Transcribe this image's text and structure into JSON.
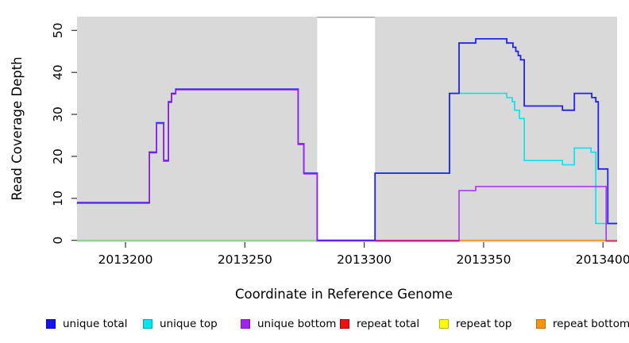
{
  "chart": {
    "type": "step-line",
    "xlabel": "Coordinate in Reference Genome",
    "ylabel": "Read Coverage Depth",
    "xlim": [
      2013179.7,
      2013405.9
    ],
    "ylim": [
      0,
      53.3
    ],
    "xticks": [
      2013200,
      2013250,
      2013300,
      2013350,
      2013400
    ],
    "yticks": [
      0,
      10,
      20,
      30,
      40,
      50
    ],
    "panel_bg": "#d9d9d9",
    "gap_region": [
      2013280.3,
      2013304.5
    ],
    "regions": [
      [
        2013179.7,
        2013280.3
      ],
      [
        2013304.5,
        2013405.9
      ]
    ],
    "series": [
      {
        "name": "zero-line-left-green",
        "legend_label": null,
        "color": "#7fc97f",
        "width": 1.4,
        "dy": 0,
        "steps": [
          [
            2013179.7,
            0
          ]
        ],
        "x_end": 2013280.3
      },
      {
        "name": "repeat-total",
        "legend_label": "repeat total",
        "color": "#ee2222",
        "width": 1.4,
        "dy": 0,
        "steps": [
          [
            2013304.5,
            0
          ]
        ],
        "x_end": 2013340
      },
      {
        "name": "repeat-top",
        "legend_label": "repeat top",
        "color": "#ffff00",
        "width": 1.4,
        "dy": 0,
        "steps": [],
        "x_end": null
      },
      {
        "name": "repeat-bottom",
        "legend_label": "repeat bottom",
        "color": "#ff9300",
        "width": 1.6,
        "dy": 0,
        "steps": [
          [
            2013340,
            0
          ]
        ],
        "x_end": 2013405.9
      },
      {
        "name": "unique-top",
        "legend_label": "unique top",
        "color": "#00e5ee",
        "width": 1.6,
        "dy": 0,
        "steps": [
          [
            2013304.5,
            16
          ],
          [
            2013335.7,
            35
          ],
          [
            2013359.7,
            34
          ],
          [
            2013362,
            33
          ],
          [
            2013363,
            31
          ],
          [
            2013365,
            29
          ],
          [
            2013367,
            19
          ],
          [
            2013383,
            18
          ],
          [
            2013388,
            22
          ],
          [
            2013395,
            21
          ],
          [
            2013397,
            4
          ]
        ],
        "x_end": 2013405.9
      },
      {
        "name": "unique-total",
        "legend_label": "unique total",
        "color": "#2222ee",
        "width": 1.8,
        "dy": 0,
        "steps": [
          [
            2013179.7,
            9
          ],
          [
            2013210,
            21
          ],
          [
            2013213,
            28
          ],
          [
            2013216,
            19
          ],
          [
            2013218,
            33
          ],
          [
            2013219.3,
            35
          ],
          [
            2013221,
            36
          ],
          [
            2013272.3,
            23
          ],
          [
            2013274.7,
            16
          ],
          [
            2013280.3,
            0
          ],
          [
            2013304.5,
            16
          ],
          [
            2013335.7,
            35
          ],
          [
            2013339.7,
            47
          ],
          [
            2013346.7,
            48
          ],
          [
            2013359.7,
            47
          ],
          [
            2013362.3,
            46
          ],
          [
            2013363.5,
            45
          ],
          [
            2013364.5,
            44
          ],
          [
            2013365.5,
            43
          ],
          [
            2013367,
            32
          ],
          [
            2013383,
            31
          ],
          [
            2013388,
            35
          ],
          [
            2013395.3,
            34
          ],
          [
            2013397,
            33
          ],
          [
            2013398,
            17
          ],
          [
            2013402,
            4
          ]
        ],
        "x_end": 2013405.9
      },
      {
        "name": "unique-bottom",
        "legend_label": "unique bottom",
        "color": "#a020f0",
        "width": 1.4,
        "dy": 0.9,
        "steps": [
          [
            2013179.7,
            9
          ],
          [
            2013210,
            21
          ],
          [
            2013213,
            28
          ],
          [
            2013216,
            19
          ],
          [
            2013218,
            33
          ],
          [
            2013219.3,
            35
          ],
          [
            2013221,
            36
          ],
          [
            2013272.3,
            23
          ],
          [
            2013274.7,
            16
          ],
          [
            2013280.3,
            0
          ],
          [
            2013339.7,
            12
          ],
          [
            2013346.7,
            13
          ],
          [
            2013401.3,
            0
          ]
        ],
        "x_end": 2013405.9
      }
    ]
  },
  "legend": {
    "items": [
      {
        "label": "unique total",
        "color": "#1414ee",
        "border": "#0000bb"
      },
      {
        "label": "unique top",
        "color": "#00e5ee",
        "border": "#00a9b3"
      },
      {
        "label": "unique bottom",
        "color": "#a020f0",
        "border": "#7d18bd"
      },
      {
        "label": "repeat total",
        "color": "#ee1111",
        "border": "#aa0000"
      },
      {
        "label": "repeat top",
        "color": "#ffff00",
        "border": "#b9b900"
      },
      {
        "label": "repeat bottom",
        "color": "#ff9300",
        "border": "#c06c00"
      }
    ]
  }
}
